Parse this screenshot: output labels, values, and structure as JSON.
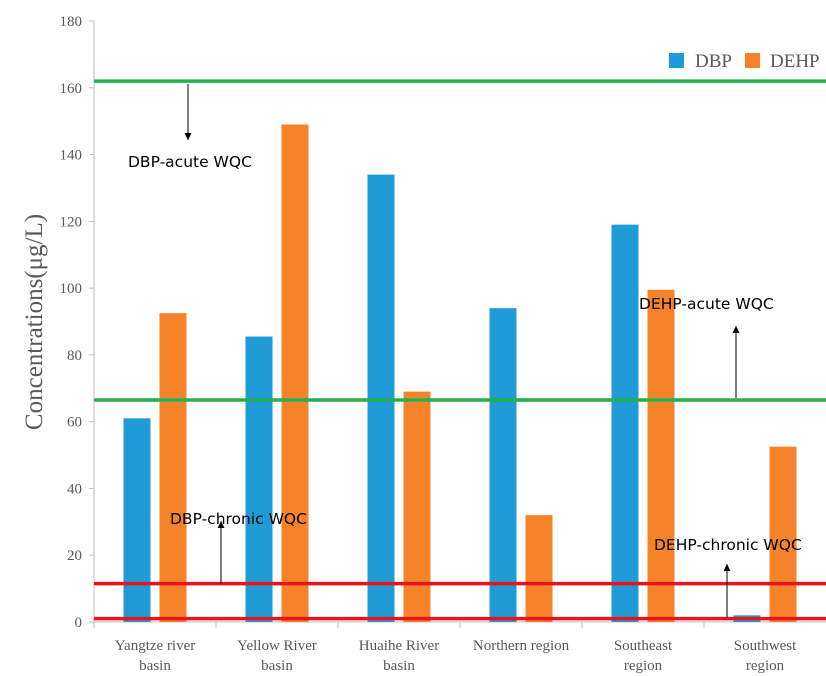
{
  "chart_data": {
    "type": "bar",
    "categories": [
      [
        "Yangtze river",
        "basin"
      ],
      [
        "Yellow River",
        "basin"
      ],
      [
        "Huaihe River",
        "basin"
      ],
      [
        "Northern region"
      ],
      [
        "Southeast",
        "region"
      ],
      [
        "Southwest",
        "region"
      ]
    ],
    "series": [
      {
        "name": "DBP",
        "color": "#1f9bd7",
        "values": [
          61,
          85.5,
          134,
          94,
          119,
          2
        ]
      },
      {
        "name": "DEHP",
        "color": "#f6822a",
        "values": [
          92.5,
          149,
          69,
          32,
          99.5,
          52.5
        ]
      }
    ],
    "ylabel": "Concentrations(μg/L)",
    "ylim": [
      0,
      180
    ],
    "yticks": [
      0,
      20,
      40,
      60,
      80,
      100,
      120,
      140,
      160,
      180
    ],
    "legend_position": "top-right",
    "thresholds": [
      {
        "label": "DBP-acute WQC",
        "value": 162,
        "color": "#22b14c",
        "arrow": "down"
      },
      {
        "label": "DEHP-acute WQC",
        "value": 66.5,
        "color": "#22b14c",
        "arrow": "up"
      },
      {
        "label": "DBP-chronic WQC",
        "value": 11.5,
        "color": "#e8141c",
        "arrow": "up"
      },
      {
        "label": "DEHP-chronic WQC",
        "value": 1,
        "color": "#e8141c",
        "arrow": "up"
      }
    ]
  }
}
